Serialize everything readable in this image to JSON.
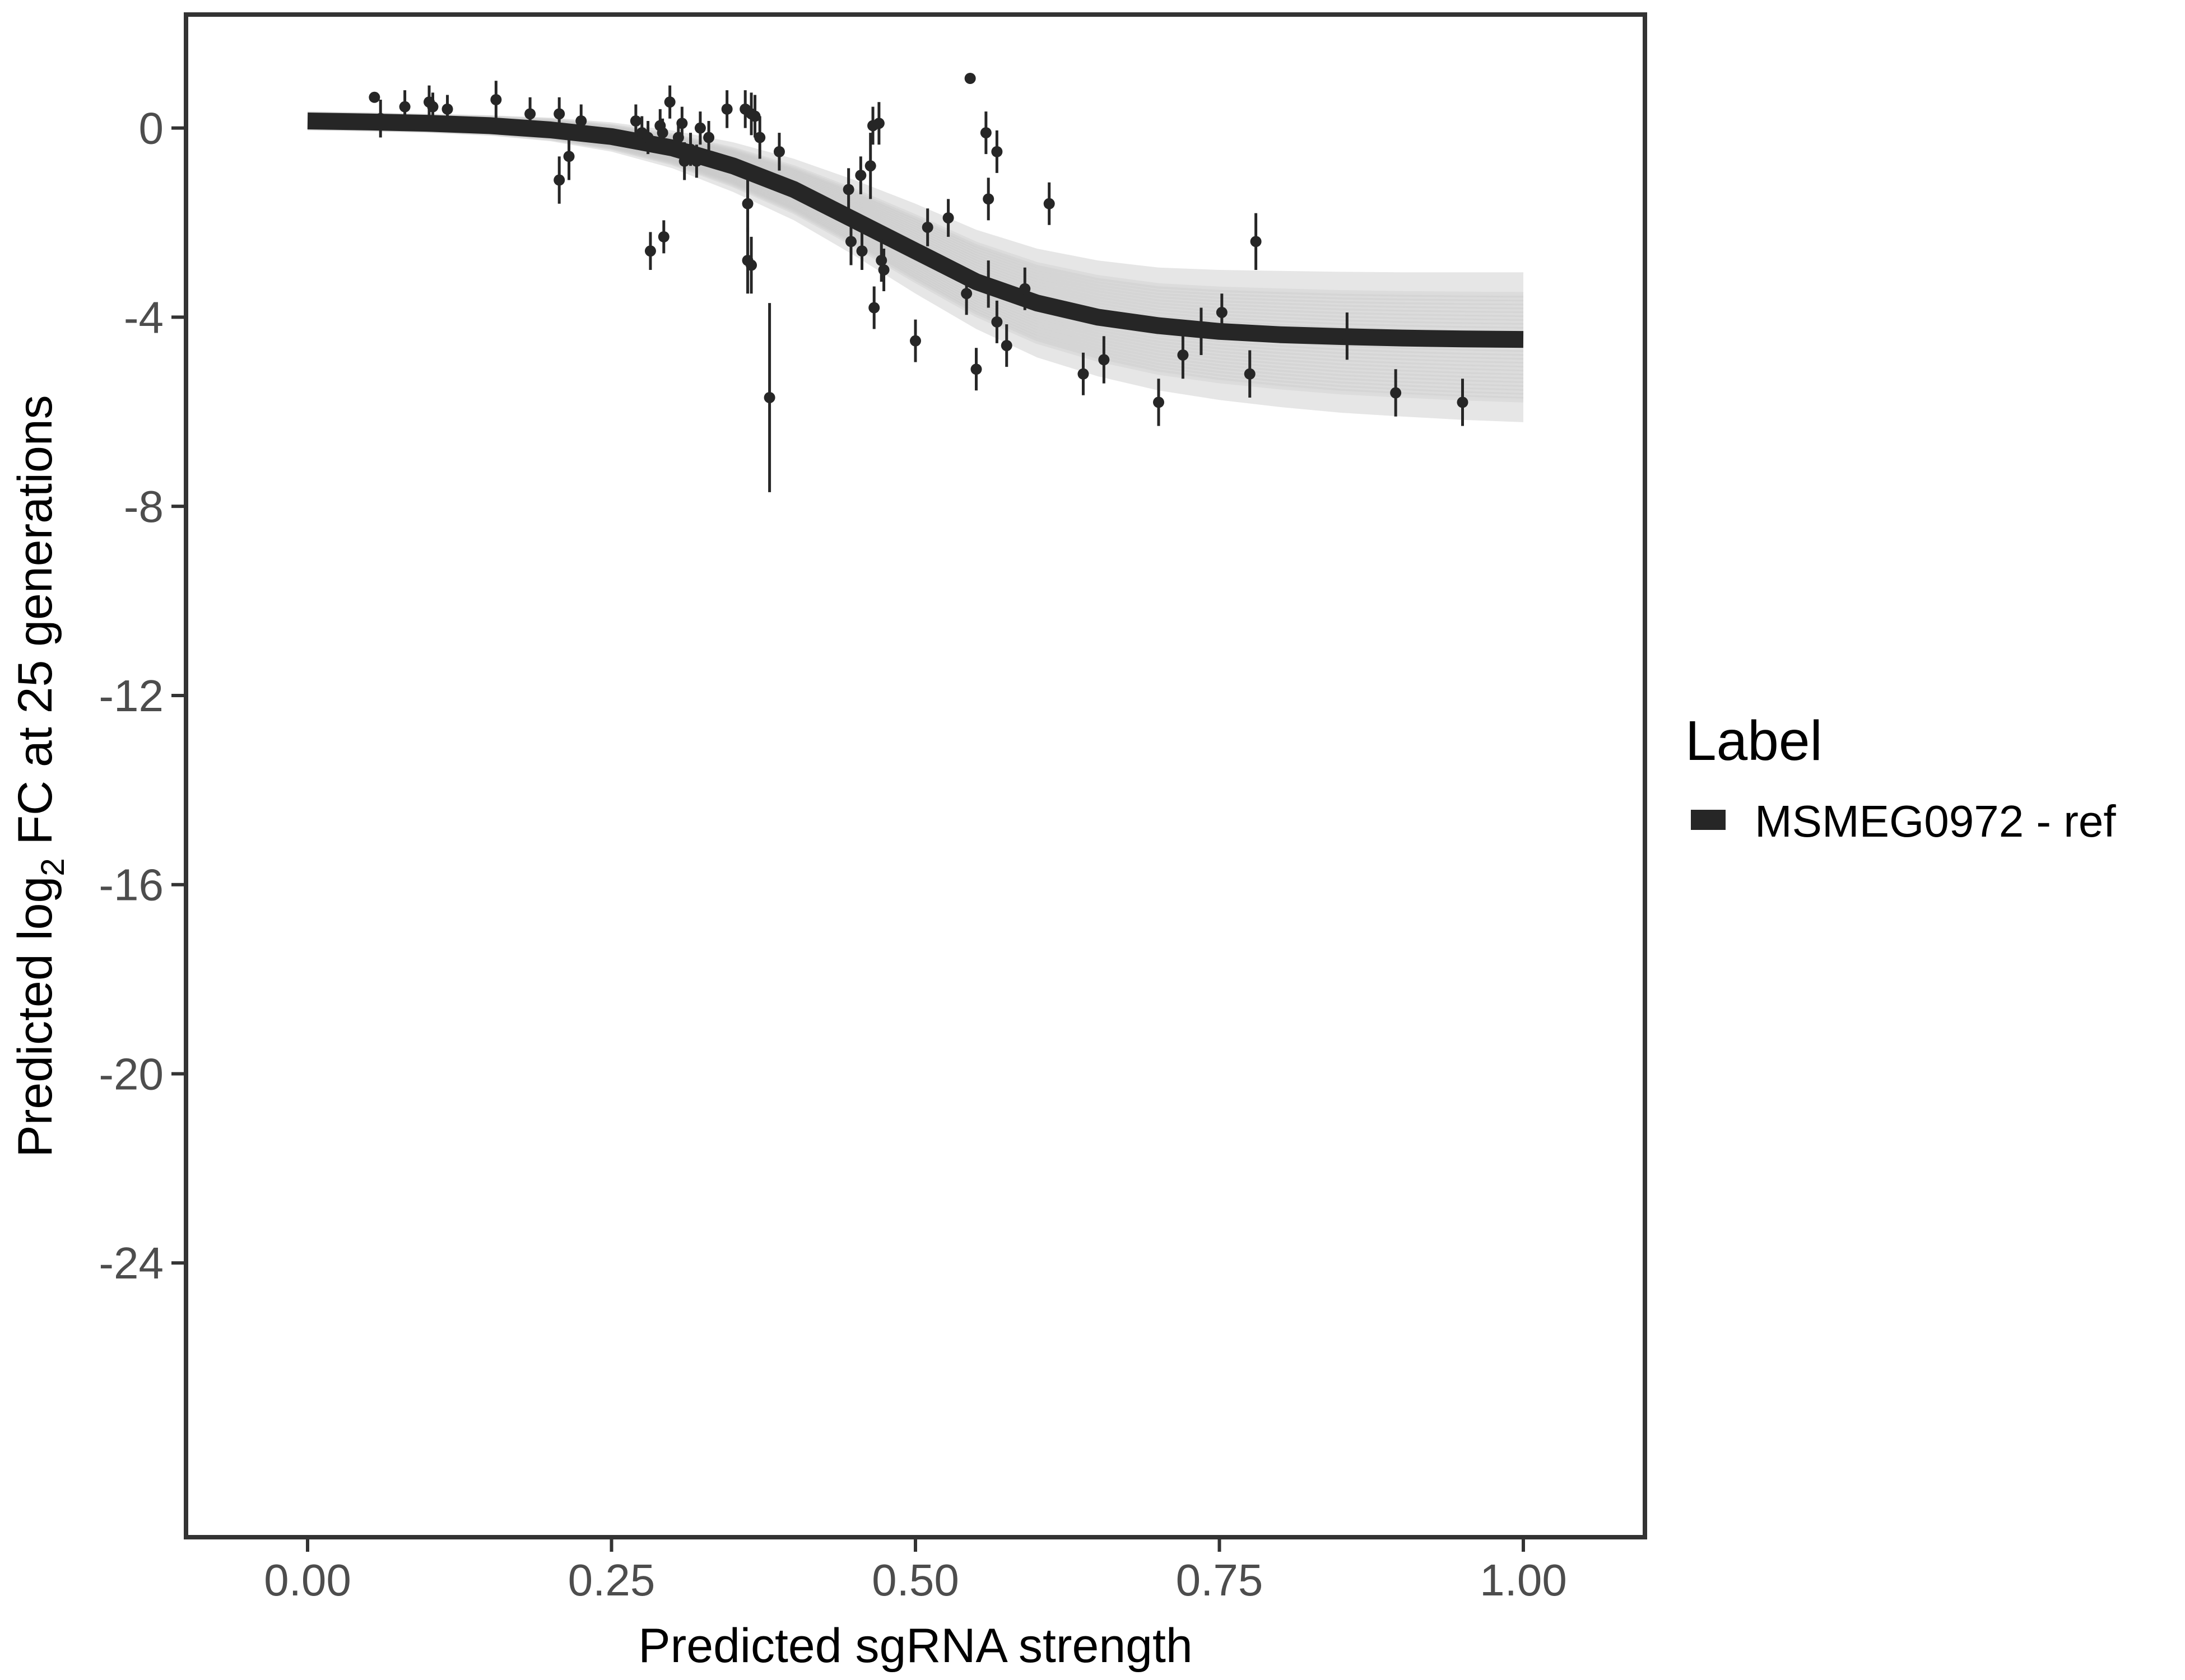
{
  "chart_data": {
    "type": "scatter",
    "title": "",
    "xlabel": "Predicted sgRNA strength",
    "ylabel_prefix": "Predicted  log",
    "ylabel_sub": "2",
    "ylabel_suffix": " FC at 25 generations",
    "xlim": [
      -0.1,
      1.1
    ],
    "ylim": [
      -29.8,
      2.4
    ],
    "x_ticks": [
      0,
      0.25,
      0.5,
      0.75,
      1
    ],
    "x_tick_labels": [
      "0.00",
      "0.25",
      "0.50",
      "0.75",
      "1.00"
    ],
    "y_ticks": [
      0,
      -4,
      -8,
      -12,
      -16,
      -20,
      -24
    ],
    "y_tick_labels": [
      "0",
      "-4",
      "-8",
      "-12",
      "-16",
      "-20",
      "-24"
    ],
    "grid": false,
    "legend": {
      "title": "Label",
      "position": "right",
      "entries": [
        {
          "label": "MSMEG0972 - ref",
          "color": "#262626"
        }
      ]
    },
    "fit_curve": {
      "name": "MSMEG0972 - ref",
      "color": "#262626",
      "x": [
        0.0,
        0.05,
        0.1,
        0.15,
        0.2,
        0.25,
        0.3,
        0.35,
        0.4,
        0.45,
        0.5,
        0.55,
        0.6,
        0.65,
        0.7,
        0.75,
        0.8,
        0.85,
        0.9,
        0.95,
        1.0
      ],
      "y": [
        0.15,
        0.13,
        0.1,
        0.05,
        -0.04,
        -0.18,
        -0.42,
        -0.8,
        -1.3,
        -1.95,
        -2.6,
        -3.25,
        -3.7,
        -4.0,
        -4.18,
        -4.3,
        -4.37,
        -4.41,
        -4.44,
        -4.46,
        -4.47
      ]
    },
    "uncertainty_band": {
      "color": "#c8c8c8",
      "x": [
        0.0,
        0.05,
        0.1,
        0.15,
        0.2,
        0.25,
        0.3,
        0.35,
        0.4,
        0.45,
        0.5,
        0.55,
        0.6,
        0.65,
        0.7,
        0.75,
        0.8,
        0.85,
        0.9,
        0.95,
        1.0
      ],
      "upper": [
        0.35,
        0.33,
        0.3,
        0.27,
        0.22,
        0.12,
        -0.05,
        -0.3,
        -0.65,
        -1.1,
        -1.6,
        -2.15,
        -2.55,
        -2.8,
        -2.95,
        -3.0,
        -3.02,
        -3.04,
        -3.05,
        -3.05,
        -3.05
      ],
      "lower": [
        -0.05,
        -0.07,
        -0.1,
        -0.16,
        -0.28,
        -0.5,
        -0.85,
        -1.35,
        -1.95,
        -2.7,
        -3.5,
        -4.25,
        -4.85,
        -5.25,
        -5.55,
        -5.75,
        -5.9,
        -6.02,
        -6.1,
        -6.17,
        -6.22
      ]
    },
    "points": [
      {
        "x": 0.055,
        "y": 0.65,
        "err": 0.0
      },
      {
        "x": 0.06,
        "y": 0.2,
        "err": 0.4
      },
      {
        "x": 0.08,
        "y": 0.45,
        "err": 0.35
      },
      {
        "x": 0.1,
        "y": 0.55,
        "err": 0.35
      },
      {
        "x": 0.103,
        "y": 0.45,
        "err": 0.3
      },
      {
        "x": 0.115,
        "y": 0.4,
        "err": 0.3
      },
      {
        "x": 0.155,
        "y": 0.6,
        "err": 0.4
      },
      {
        "x": 0.183,
        "y": 0.3,
        "err": 0.35
      },
      {
        "x": 0.207,
        "y": 0.3,
        "err": 0.35
      },
      {
        "x": 0.207,
        "y": -1.1,
        "err": 0.5
      },
      {
        "x": 0.215,
        "y": -0.6,
        "err": 0.5
      },
      {
        "x": 0.225,
        "y": 0.15,
        "err": 0.35
      },
      {
        "x": 0.27,
        "y": 0.15,
        "err": 0.35
      },
      {
        "x": 0.275,
        "y": -0.1,
        "err": 0.35
      },
      {
        "x": 0.28,
        "y": -0.2,
        "err": 0.35
      },
      {
        "x": 0.282,
        "y": -2.6,
        "err": 0.4
      },
      {
        "x": 0.29,
        "y": 0.05,
        "err": 0.35
      },
      {
        "x": 0.292,
        "y": -0.1,
        "err": 0.3
      },
      {
        "x": 0.293,
        "y": -2.3,
        "err": 0.35
      },
      {
        "x": 0.298,
        "y": 0.55,
        "err": 0.35
      },
      {
        "x": 0.305,
        "y": -0.2,
        "err": 0.35
      },
      {
        "x": 0.308,
        "y": 0.1,
        "err": 0.35
      },
      {
        "x": 0.31,
        "y": -0.7,
        "err": 0.4
      },
      {
        "x": 0.315,
        "y": -0.45,
        "err": 0.35
      },
      {
        "x": 0.32,
        "y": -0.7,
        "err": 0.35
      },
      {
        "x": 0.323,
        "y": 0.0,
        "err": 0.35
      },
      {
        "x": 0.33,
        "y": -0.2,
        "err": 0.35
      },
      {
        "x": 0.345,
        "y": 0.4,
        "err": 0.4
      },
      {
        "x": 0.36,
        "y": 0.4,
        "err": 0.4
      },
      {
        "x": 0.362,
        "y": -1.6,
        "err": 0.6
      },
      {
        "x": 0.362,
        "y": -2.8,
        "err": 0.7
      },
      {
        "x": 0.365,
        "y": -2.9,
        "err": 0.6
      },
      {
        "x": 0.365,
        "y": 0.3,
        "err": 0.45
      },
      {
        "x": 0.368,
        "y": 0.25,
        "err": 0.45
      },
      {
        "x": 0.372,
        "y": -0.2,
        "err": 0.45
      },
      {
        "x": 0.38,
        "y": -5.7,
        "err": 2.0
      },
      {
        "x": 0.388,
        "y": -0.5,
        "err": 0.4
      },
      {
        "x": 0.445,
        "y": -1.3,
        "err": 0.45
      },
      {
        "x": 0.447,
        "y": -2.4,
        "err": 0.5
      },
      {
        "x": 0.455,
        "y": -1.0,
        "err": 0.4
      },
      {
        "x": 0.456,
        "y": -2.6,
        "err": 0.4
      },
      {
        "x": 0.463,
        "y": -0.8,
        "err": 0.7
      },
      {
        "x": 0.465,
        "y": 0.05,
        "err": 0.4
      },
      {
        "x": 0.466,
        "y": -3.8,
        "err": 0.45
      },
      {
        "x": 0.47,
        "y": 0.1,
        "err": 0.45
      },
      {
        "x": 0.472,
        "y": -2.8,
        "err": 0.45
      },
      {
        "x": 0.474,
        "y": -3.0,
        "err": 0.45
      },
      {
        "x": 0.5,
        "y": -4.5,
        "err": 0.45
      },
      {
        "x": 0.51,
        "y": -2.1,
        "err": 0.4
      },
      {
        "x": 0.527,
        "y": -1.9,
        "err": 0.4
      },
      {
        "x": 0.545,
        "y": 1.05,
        "err": 0.0
      },
      {
        "x": 0.542,
        "y": -3.5,
        "err": 0.45
      },
      {
        "x": 0.55,
        "y": -5.1,
        "err": 0.45
      },
      {
        "x": 0.558,
        "y": -0.1,
        "err": 0.45
      },
      {
        "x": 0.56,
        "y": -1.5,
        "err": 0.45
      },
      {
        "x": 0.56,
        "y": -3.3,
        "err": 0.5
      },
      {
        "x": 0.567,
        "y": -4.1,
        "err": 0.45
      },
      {
        "x": 0.567,
        "y": -0.5,
        "err": 0.45
      },
      {
        "x": 0.575,
        "y": -4.6,
        "err": 0.45
      },
      {
        "x": 0.59,
        "y": -3.4,
        "err": 0.45
      },
      {
        "x": 0.61,
        "y": -1.6,
        "err": 0.45
      },
      {
        "x": 0.638,
        "y": -5.2,
        "err": 0.45
      },
      {
        "x": 0.655,
        "y": -4.9,
        "err": 0.5
      },
      {
        "x": 0.7,
        "y": -5.8,
        "err": 0.5
      },
      {
        "x": 0.72,
        "y": -4.8,
        "err": 0.5
      },
      {
        "x": 0.735,
        "y": -4.3,
        "err": 0.5
      },
      {
        "x": 0.752,
        "y": -3.9,
        "err": 0.4
      },
      {
        "x": 0.775,
        "y": -5.2,
        "err": 0.5
      },
      {
        "x": 0.78,
        "y": -2.4,
        "err": 0.6
      },
      {
        "x": 0.855,
        "y": -4.4,
        "err": 0.5
      },
      {
        "x": 0.895,
        "y": -5.6,
        "err": 0.5
      },
      {
        "x": 0.95,
        "y": -5.8,
        "err": 0.5
      }
    ]
  }
}
